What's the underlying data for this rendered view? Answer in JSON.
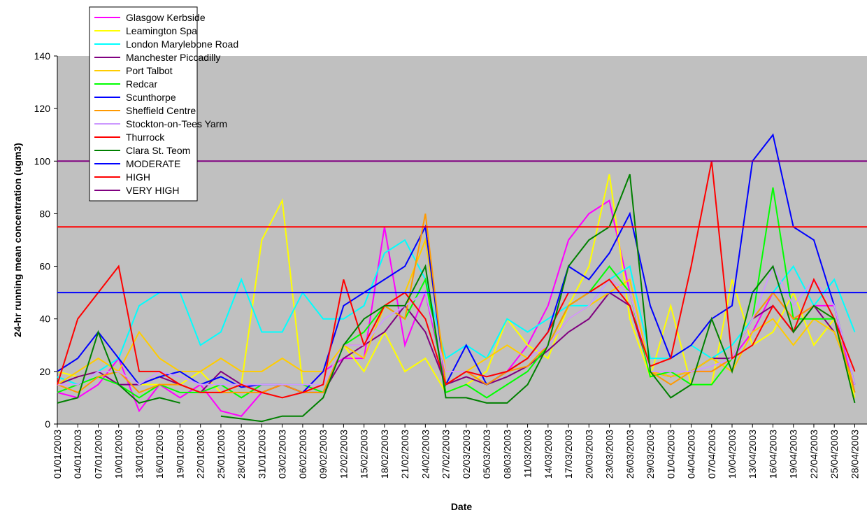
{
  "chart_data": {
    "type": "line",
    "y_label": "24-hr running mean concentration (ugm3)",
    "x_label": "Date",
    "x": [
      "01/01/2003",
      "04/01/2003",
      "07/01/2003",
      "10/01/2003",
      "13/01/2003",
      "16/01/2003",
      "19/01/2003",
      "22/01/2003",
      "25/01/2003",
      "28/01/2003",
      "31/01/2003",
      "03/02/2003",
      "06/02/2003",
      "09/02/2003",
      "12/02/2003",
      "15/02/2003",
      "18/02/2003",
      "21/02/2003",
      "24/02/2003",
      "27/02/2003",
      "02/03/2003",
      "05/03/2003",
      "08/03/2003",
      "11/03/2003",
      "14/03/2003",
      "17/03/2003",
      "20/03/2003",
      "23/03/2003",
      "26/03/2003",
      "29/03/2003",
      "01/04/2003",
      "04/04/2003",
      "07/04/2003",
      "10/04/2003",
      "13/04/2003",
      "16/04/2003",
      "19/04/2003",
      "22/04/2003",
      "25/04/2003",
      "28/04/2003"
    ],
    "ylim": [
      0,
      140
    ],
    "yticks": [
      0,
      20,
      40,
      60,
      80,
      100,
      120,
      140
    ],
    "background": "#c0c0c0",
    "series": [
      {
        "name": "Glasgow Kerbside",
        "color": "#ff00ff",
        "values": [
          12,
          10,
          15,
          25,
          5,
          15,
          10,
          15,
          5,
          3,
          12,
          15,
          12,
          20,
          25,
          25,
          75,
          30,
          50,
          15,
          20,
          15,
          20,
          30,
          45,
          70,
          80,
          85,
          50,
          20,
          18,
          20,
          20,
          25,
          35,
          50,
          40,
          45,
          45,
          12
        ]
      },
      {
        "name": "Leamington Spa",
        "color": "#ffff00",
        "values": [
          20,
          18,
          20,
          20,
          15,
          15,
          15,
          20,
          12,
          15,
          70,
          85,
          15,
          15,
          30,
          20,
          35,
          20,
          25,
          12,
          15,
          20,
          40,
          30,
          25,
          45,
          60,
          95,
          40,
          18,
          45,
          15,
          15,
          55,
          30,
          35,
          50,
          30,
          40,
          10
        ]
      },
      {
        "name": "London Marylebone Road",
        "color": "#00ffff",
        "values": [
          18,
          15,
          20,
          25,
          45,
          50,
          50,
          30,
          35,
          55,
          35,
          35,
          50,
          40,
          40,
          45,
          65,
          70,
          55,
          25,
          30,
          25,
          40,
          35,
          40,
          45,
          45,
          55,
          60,
          25,
          25,
          30,
          25,
          30,
          40,
          50,
          60,
          45,
          55,
          35
        ]
      },
      {
        "name": "Manchester Piccadilly",
        "color": "#800080",
        "values": [
          15,
          18,
          20,
          15,
          15,
          18,
          15,
          12,
          20,
          15,
          12,
          15,
          12,
          12,
          25,
          30,
          35,
          45,
          35,
          15,
          18,
          15,
          18,
          22,
          28,
          35,
          40,
          50,
          45,
          20,
          18,
          20,
          25,
          25,
          40,
          45,
          35,
          45,
          35,
          15
        ]
      },
      {
        "name": "Port Talbot",
        "color": "#ffcc00",
        "values": [
          15,
          20,
          25,
          20,
          35,
          25,
          20,
          20,
          25,
          20,
          20,
          25,
          20,
          20,
          30,
          25,
          45,
          50,
          70,
          20,
          20,
          25,
          30,
          25,
          30,
          40,
          45,
          50,
          55,
          20,
          18,
          20,
          25,
          20,
          35,
          40,
          30,
          40,
          35,
          15
        ]
      },
      {
        "name": "Redcar",
        "color": "#00ff00",
        "values": [
          12,
          15,
          18,
          15,
          10,
          15,
          12,
          12,
          15,
          10,
          15,
          15,
          15,
          12,
          30,
          35,
          45,
          40,
          55,
          12,
          15,
          10,
          15,
          20,
          30,
          45,
          50,
          60,
          50,
          18,
          20,
          15,
          15,
          25,
          40,
          90,
          40,
          40,
          40,
          12
        ]
      },
      {
        "name": "Scunthorpe",
        "color": "#0000ff",
        "values": [
          20,
          25,
          35,
          25,
          15,
          18,
          20,
          15,
          18,
          14,
          15,
          15,
          12,
          20,
          45,
          50,
          55,
          60,
          75,
          15,
          30,
          15,
          20,
          25,
          35,
          60,
          55,
          65,
          80,
          45,
          25,
          30,
          40,
          45,
          100,
          110,
          75,
          70,
          45,
          15
        ]
      },
      {
        "name": "Sheffield Centre",
        "color": "#ff9900",
        "values": [
          15,
          12,
          18,
          20,
          12,
          15,
          15,
          12,
          12,
          12,
          12,
          15,
          12,
          12,
          30,
          30,
          45,
          40,
          80,
          15,
          20,
          15,
          20,
          22,
          30,
          45,
          50,
          55,
          50,
          20,
          15,
          20,
          20,
          25,
          40,
          50,
          40,
          45,
          40,
          12
        ]
      },
      {
        "name": "Stockton-on-Tees Yarm",
        "color": "#cc99ff",
        "values": [
          15,
          15,
          20,
          20,
          15,
          20,
          18,
          15,
          15,
          15,
          15,
          15,
          15,
          15,
          30,
          30,
          40,
          45,
          50,
          20,
          20,
          18,
          20,
          25,
          30,
          40,
          45,
          55,
          50,
          20,
          20,
          20,
          22,
          25,
          40,
          60,
          45,
          55,
          45,
          15
        ]
      },
      {
        "name": "Thurrock",
        "color": "#ff0000",
        "values": [
          15,
          40,
          50,
          60,
          20,
          20,
          15,
          12,
          12,
          15,
          12,
          10,
          12,
          15,
          55,
          30,
          45,
          50,
          40,
          15,
          20,
          18,
          20,
          25,
          35,
          50,
          50,
          55,
          45,
          22,
          25,
          60,
          100,
          25,
          30,
          45,
          35,
          55,
          40,
          20
        ]
      },
      {
        "name": "Clara St. Teom",
        "color": "#008000",
        "values": [
          8,
          10,
          35,
          15,
          8,
          10,
          8,
          null,
          3,
          2,
          1,
          3,
          3,
          10,
          30,
          40,
          45,
          45,
          60,
          10,
          10,
          8,
          8,
          15,
          30,
          60,
          70,
          75,
          95,
          20,
          10,
          15,
          40,
          20,
          50,
          60,
          35,
          45,
          40,
          8
        ]
      }
    ],
    "hlines": [
      {
        "name": "MODERATE",
        "color": "#0000ff",
        "value": 50
      },
      {
        "name": "HIGH",
        "color": "#ff0000",
        "value": 75
      },
      {
        "name": "VERY HIGH",
        "color": "#800080",
        "value": 100
      }
    ]
  }
}
